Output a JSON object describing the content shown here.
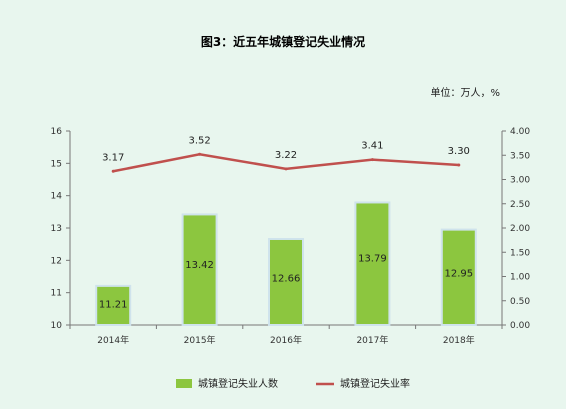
{
  "chart_data": {
    "type": "bar+line",
    "title": "图3：近五年城镇登记失业情况",
    "unit_label": "单位：万人，%",
    "categories": [
      "2014年",
      "2015年",
      "2016年",
      "2017年",
      "2018年"
    ],
    "series": [
      {
        "name": "城镇登记失业人数",
        "type": "bar",
        "axis": "left",
        "values": [
          11.21,
          13.42,
          12.66,
          13.79,
          12.95
        ],
        "labels": [
          "11.21",
          "13.42",
          "12.66",
          "13.79",
          "12.95"
        ],
        "color": "#8cc63f"
      },
      {
        "name": "城镇登记失业率",
        "type": "line",
        "axis": "right",
        "values": [
          3.17,
          3.52,
          3.22,
          3.41,
          3.3
        ],
        "labels": [
          "3.17",
          "3.52",
          "3.22",
          "3.41",
          "3.30"
        ],
        "color": "#c0504d"
      }
    ],
    "y_left": {
      "min": 10,
      "max": 16,
      "ticks": [
        "10",
        "11",
        "12",
        "13",
        "14",
        "15",
        "16"
      ]
    },
    "y_right": {
      "min": 0,
      "max": 4,
      "ticks": [
        "0.00",
        "0.50",
        "1.00",
        "1.50",
        "2.00",
        "2.50",
        "3.00",
        "3.50",
        "4.00"
      ]
    },
    "legend_position": "bottom",
    "grid": false
  }
}
